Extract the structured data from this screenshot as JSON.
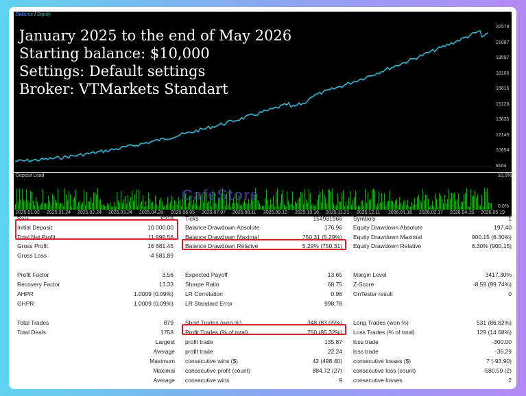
{
  "legend": {
    "balance": "Balance",
    "sep": " / ",
    "equity": "Equity"
  },
  "caption": [
    "January 2025 to the end of May 2026",
    "Starting balance: $10,000",
    "Settings: Default settings",
    "Broker: VTMarkets Standart"
  ],
  "y_ticks": [
    "22578",
    "21087",
    "19597",
    "18106",
    "16616",
    "15126",
    "13635",
    "12145",
    "10654",
    "9164"
  ],
  "deposit_load": {
    "title": "Deposit Load",
    "top": "10.0%",
    "bottom": "0.0%"
  },
  "x_ticks": [
    "2025.01.02",
    "2025.01.24",
    "2025.02.24",
    "2025.03.24",
    "2025.04.28",
    "2025.06.05",
    "2025.07.07",
    "2025.08.11",
    "2025.09.12",
    "2025.10.16",
    "2025.11.21",
    "2025.12.11",
    "2026.01.16",
    "2026.02.17",
    "2026.04.15",
    "2026.05.19"
  ],
  "watermark": "CafeStore",
  "stats": {
    "r1": {
      "a": "Bars",
      "av": "8319",
      "b": "Ticks",
      "bv": "154931966",
      "c": "Symbols",
      "cv": "1"
    },
    "r2": {
      "a": "Initial Deposit",
      "av": "10 000.00",
      "b": "Balance Drawdown Absolute",
      "bv": "176.96",
      "c": "Equity Drawdown Absolute",
      "cv": "197.40"
    },
    "r3": {
      "a": "Total Net Profit",
      "av": "11 999.56",
      "b": "Balance Drawdown Maximal",
      "bv": "750.31 (5.29%)",
      "c": "Equity Drawdown Maximal",
      "cv": "900.15 (6.30%)"
    },
    "r4": {
      "a": "Gross Profit",
      "av": "16 681.45",
      "b": "Balance Drawdown Relative",
      "bv": "5.29% (750.31)",
      "c": "Equity Drawdown Relative",
      "cv": "6.30% (900.15)"
    },
    "r5": {
      "a": "Gross Loss",
      "av": "-4 681.89"
    },
    "r6": {
      "a": "Profit Factor",
      "av": "3.56",
      "b": "Expected Payoff",
      "bv": "13.65",
      "c": "Margin Level",
      "cv": "3417.30%"
    },
    "r7": {
      "a": "Recovery Factor",
      "av": "13.33",
      "b": "Sharpe Ratio",
      "bv": "68.75",
      "c": "Z-Score",
      "cv": "-8.59 (99.74%)"
    },
    "r8": {
      "a": "AHPR",
      "av": "1.0009 (0.09%)",
      "b": "LR Correlation",
      "bv": "0.96",
      "c": "OnTester result",
      "cv": "0"
    },
    "r9": {
      "a": "GHPR",
      "av": "1.0009 (0.09%)",
      "b": "LR Standard Error",
      "bv": "998.78"
    },
    "r10": {
      "a": "Total Trades",
      "av": "879",
      "b": "Short Trades (won %)",
      "bv": "348 (83.05%)",
      "c": "Long Trades (won %)",
      "cv": "531 (86.82%)"
    },
    "r11": {
      "a": "Total Deals",
      "av": "1758",
      "b": "Profit Trades (% of total)",
      "bv": "750 (85.32%)",
      "c": "Loss Trades (% of total)",
      "cv": "129 (14.68%)"
    },
    "r12": {
      "a": "Largest",
      "b": "profit trade",
      "bv": "135.87",
      "c": "loss trade",
      "cv": "-300.00"
    },
    "r13": {
      "a": "Average",
      "b": "profit trade",
      "bv": "22.24",
      "c": "loss trade",
      "cv": "-36.29"
    },
    "r14": {
      "a": "Maximum",
      "b": "consecutive wins ($)",
      "bv": "42 (498.40)",
      "c": "consecutive losses ($)",
      "cv": "7 (-93.90)"
    },
    "r15": {
      "a": "Maximal",
      "b": "consecutive profit (count)",
      "bv": "884.72 (27)",
      "c": "consecutive loss (count)",
      "cv": "-580.59 (2)"
    },
    "r16": {
      "a": "Average",
      "b": "consecutive wins",
      "bv": "9",
      "c": "consecutive losses",
      "cv": "2"
    }
  },
  "colors": {
    "balance": "#4a90ff",
    "equity": "#2ec4b6",
    "deposit": "#1fa31f",
    "highlight": "#d21f2a"
  }
}
